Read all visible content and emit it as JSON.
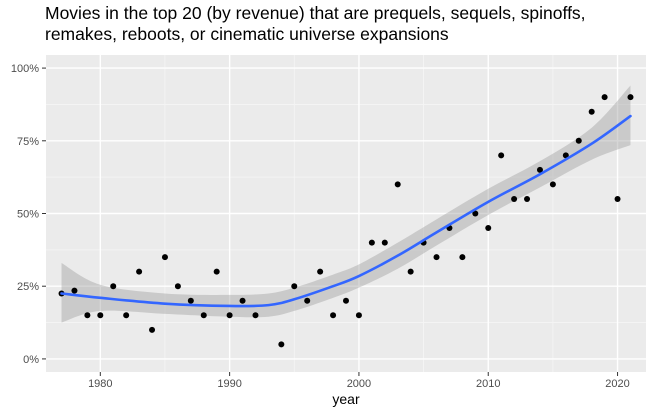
{
  "chart_data": {
    "type": "scatter",
    "title_lines": [
      "Movies in the top 20 (by revenue) that are prequels, sequels, spinoffs,",
      "remakes, reboots, or cinematic universe expansions"
    ],
    "xlabel": "year",
    "ylabel": "",
    "xlim": [
      1975.8,
      2022.2
    ],
    "ylim": [
      -0.045,
      1.045
    ],
    "x_ticks": [
      {
        "value": 1980,
        "label": "1980"
      },
      {
        "value": 1990,
        "label": "1990"
      },
      {
        "value": 2000,
        "label": "2000"
      },
      {
        "value": 2010,
        "label": "2010"
      },
      {
        "value": 2020,
        "label": "2020"
      }
    ],
    "y_ticks": [
      {
        "value": 0,
        "label": "0%"
      },
      {
        "value": 0.25,
        "label": "25%"
      },
      {
        "value": 0.5,
        "label": "50%"
      },
      {
        "value": 0.75,
        "label": "75%"
      },
      {
        "value": 1,
        "label": "100%"
      }
    ],
    "grid": true,
    "legend": "none",
    "points": {
      "x": [
        1977,
        1978,
        1979,
        1980,
        1981,
        1982,
        1983,
        1984,
        1985,
        1986,
        1987,
        1988,
        1989,
        1990,
        1991,
        1992,
        1994,
        1995,
        1996,
        1997,
        1998,
        1999,
        2000,
        2001,
        2002,
        2003,
        2004,
        2005,
        2006,
        2007,
        2008,
        2009,
        2010,
        2011,
        2012,
        2013,
        2014,
        2015,
        2016,
        2017,
        2018,
        2019,
        2020,
        2021
      ],
      "y": [
        0.225,
        0.235,
        0.15,
        0.15,
        0.25,
        0.15,
        0.3,
        0.1,
        0.35,
        0.25,
        0.2,
        0.15,
        0.3,
        0.15,
        0.2,
        0.15,
        0.05,
        0.25,
        0.2,
        0.3,
        0.15,
        0.2,
        0.15,
        0.4,
        0.4,
        0.6,
        0.3,
        0.4,
        0.35,
        0.45,
        0.35,
        0.5,
        0.45,
        0.7,
        0.55,
        0.55,
        0.65,
        0.6,
        0.7,
        0.75,
        0.85,
        0.9,
        0.55,
        0.9
      ]
    },
    "smooth": {
      "x": [
        1977,
        1980,
        1985,
        1990,
        1993,
        1995,
        1998,
        2000,
        2003,
        2006,
        2010,
        2014,
        2018,
        2021
      ],
      "y": [
        0.225,
        0.21,
        0.19,
        0.182,
        0.185,
        0.205,
        0.25,
        0.285,
        0.355,
        0.435,
        0.54,
        0.635,
        0.74,
        0.835
      ],
      "lower": [
        0.125,
        0.165,
        0.155,
        0.145,
        0.145,
        0.165,
        0.21,
        0.245,
        0.31,
        0.39,
        0.495,
        0.59,
        0.685,
        0.735
      ],
      "upper": [
        0.33,
        0.255,
        0.225,
        0.22,
        0.225,
        0.245,
        0.29,
        0.325,
        0.4,
        0.48,
        0.585,
        0.68,
        0.795,
        0.94
      ]
    },
    "colors": {
      "panel": "#ebebeb",
      "grid_major": "#ffffff",
      "grid_minor": "#f5f5f5",
      "point": "#000000",
      "line": "#3366ff",
      "ribbon": "#999999",
      "axis_text": "#4d4d4d",
      "tick": "#333333"
    }
  }
}
